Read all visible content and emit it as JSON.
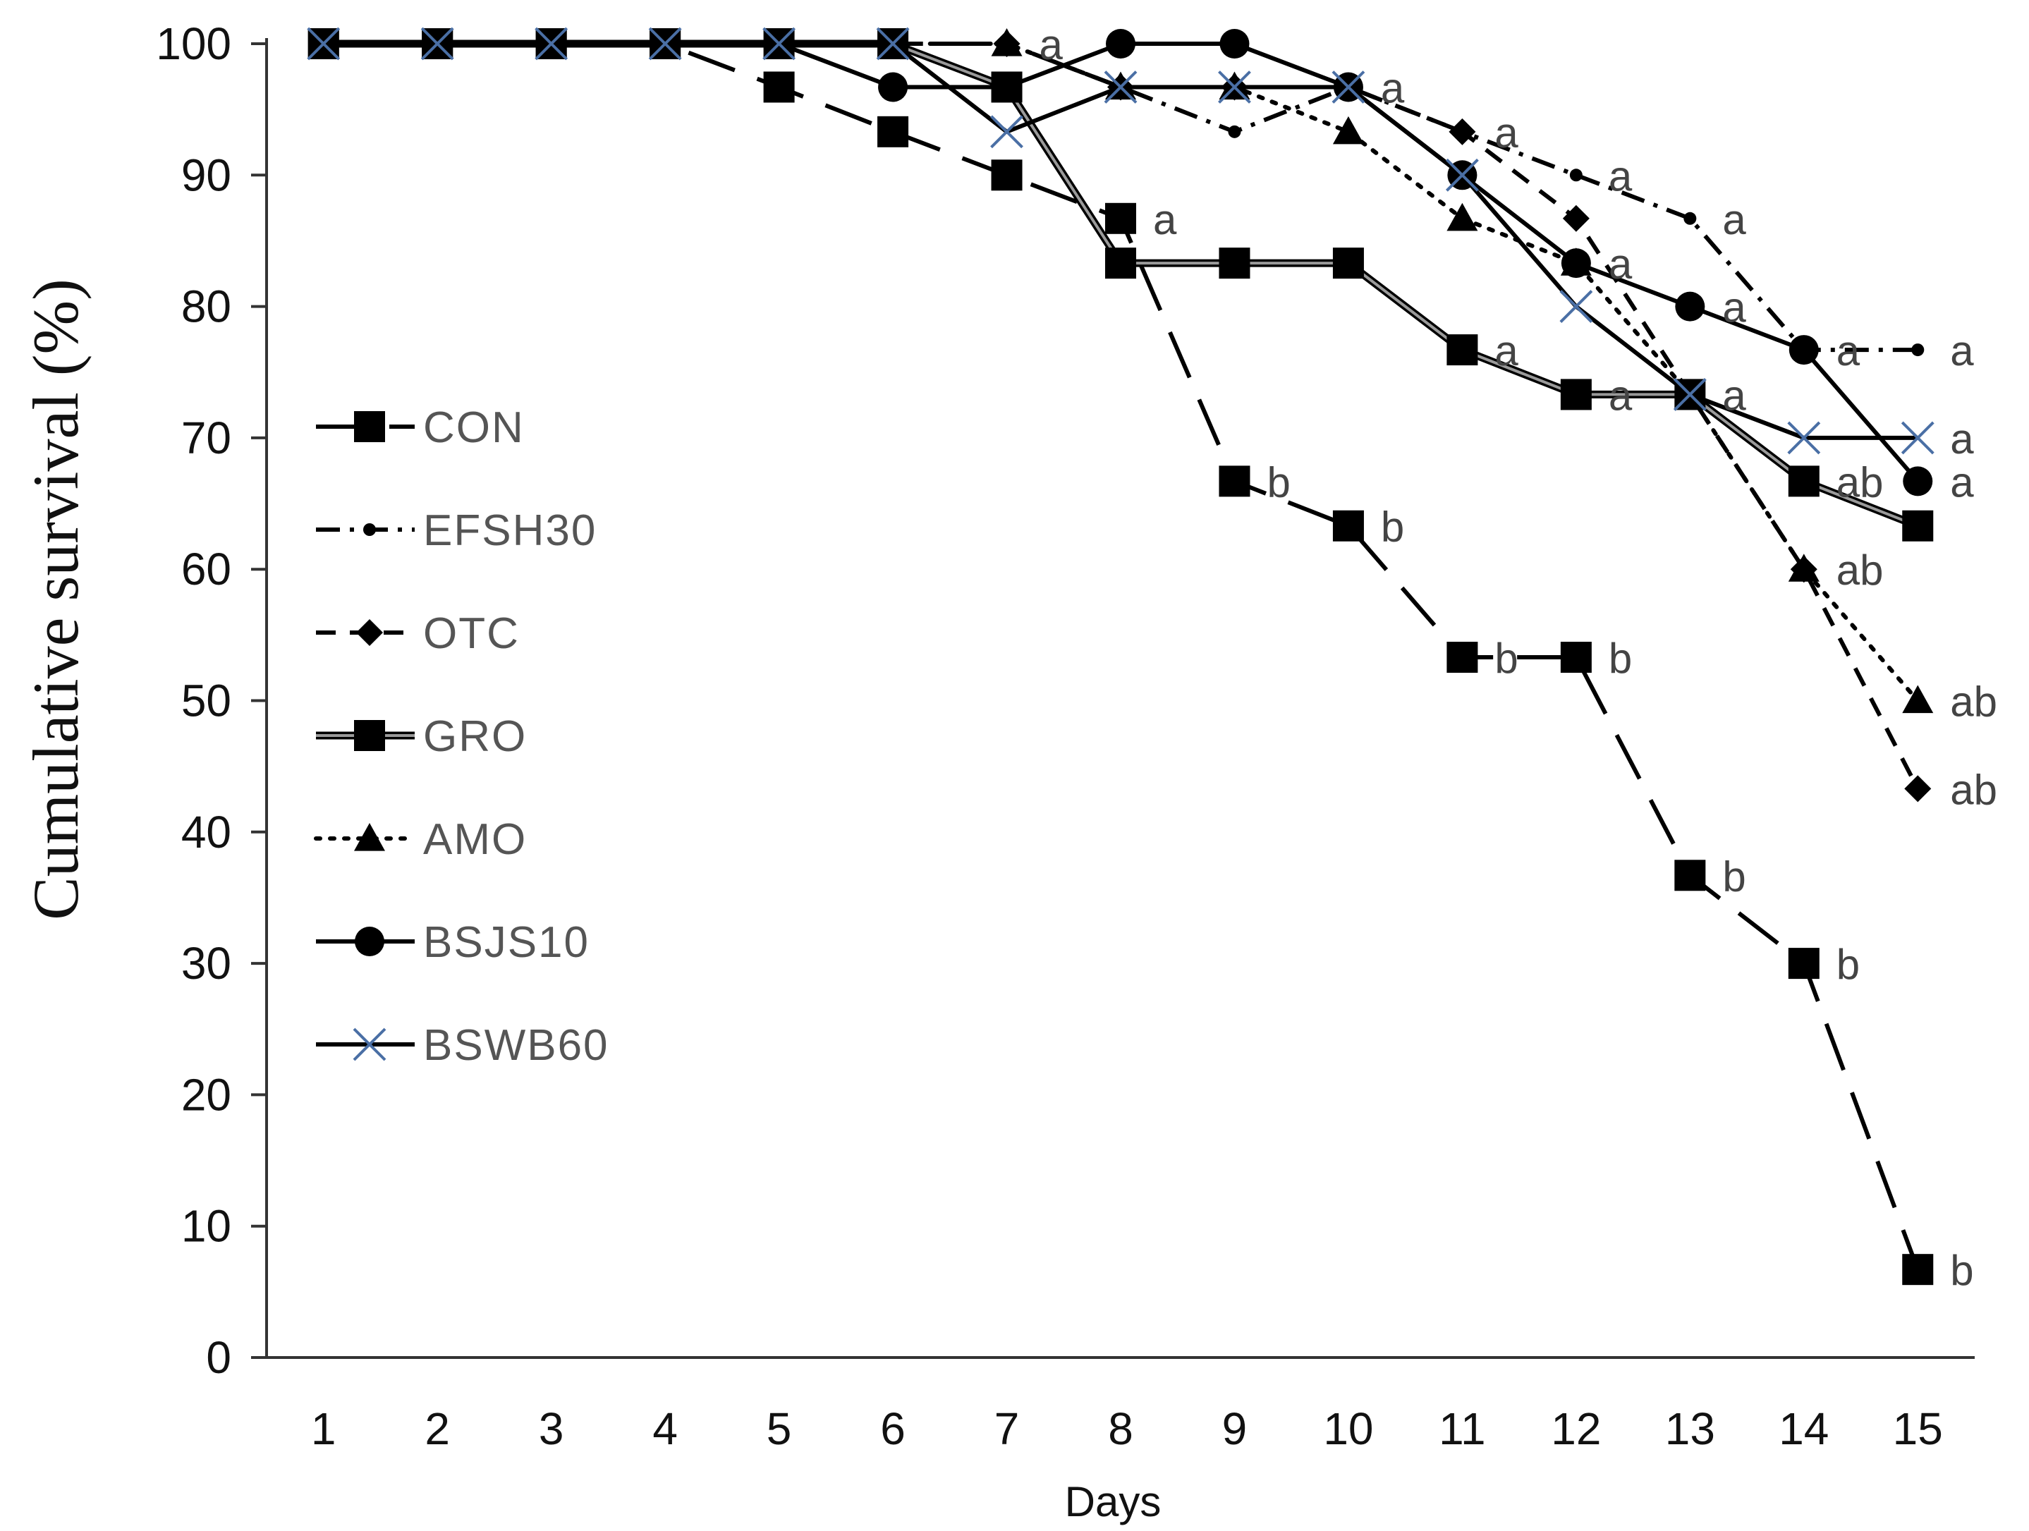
{
  "chart_data": {
    "type": "line",
    "title": "",
    "xlabel": "Days",
    "ylabel": "Cumulative survival (%)",
    "x": [
      1,
      2,
      3,
      4,
      5,
      6,
      7,
      8,
      9,
      10,
      11,
      12,
      13,
      14,
      15
    ],
    "x_tick_labels": [
      "1",
      "2",
      "3",
      "4",
      "5",
      "6",
      "7",
      "8",
      "9",
      "10",
      "11",
      "12",
      "13",
      "14",
      "15"
    ],
    "y_tick_labels": [
      "0",
      "10",
      "20",
      "30",
      "40",
      "50",
      "60",
      "70",
      "80",
      "90",
      "100"
    ],
    "xlim": [
      0.5,
      15.5
    ],
    "ylim": [
      0,
      100
    ],
    "grid": false,
    "legend_position": "left",
    "series": [
      {
        "name": "CON",
        "line_style": "long-dash",
        "marker": "square",
        "color": "#000000",
        "values": [
          100,
          100,
          100,
          100,
          96.7,
          93.3,
          90,
          86.7,
          66.7,
          63.3,
          53.3,
          53.3,
          36.7,
          30,
          6.7
        ],
        "annotations": [
          {
            "day": 8,
            "label": "a"
          },
          {
            "day": 9,
            "label": "b"
          },
          {
            "day": 10,
            "label": "b"
          },
          {
            "day": 11,
            "label": "b"
          },
          {
            "day": 12,
            "label": "b"
          },
          {
            "day": 13,
            "label": "b"
          },
          {
            "day": 14,
            "label": "b"
          },
          {
            "day": 15,
            "label": "b"
          }
        ]
      },
      {
        "name": "EFSH30",
        "line_style": "dash-dot",
        "marker": "dot",
        "color": "#000000",
        "values": [
          100,
          100,
          100,
          100,
          100,
          100,
          100,
          96.7,
          93.3,
          96.7,
          93.3,
          90,
          86.7,
          76.7,
          76.7
        ],
        "annotations": [
          {
            "day": 12,
            "label": "a"
          },
          {
            "day": 13,
            "label": "a"
          },
          {
            "day": 15,
            "label": "a"
          }
        ]
      },
      {
        "name": "OTC",
        "line_style": "dashed",
        "marker": "diamond",
        "color": "#000000",
        "values": [
          100,
          100,
          100,
          100,
          100,
          100,
          100,
          96.7,
          96.7,
          96.7,
          93.3,
          86.7,
          73.3,
          60,
          43.3
        ],
        "annotations": [
          {
            "day": 11,
            "label": "a"
          },
          {
            "day": 15,
            "label": "ab"
          }
        ]
      },
      {
        "name": "GRO",
        "line_style": "double",
        "marker": "square",
        "color": "#000000",
        "values": [
          100,
          100,
          100,
          100,
          100,
          100,
          96.7,
          83.3,
          83.3,
          83.3,
          76.7,
          73.3,
          73.3,
          66.7,
          63.3
        ],
        "annotations": [
          {
            "day": 11,
            "label": "a"
          },
          {
            "day": 12,
            "label": "a"
          },
          {
            "day": 13,
            "label": "a"
          },
          {
            "day": 14,
            "label": "ab"
          }
        ]
      },
      {
        "name": "AMO",
        "line_style": "dotted",
        "marker": "triangle",
        "color": "#000000",
        "values": [
          100,
          100,
          100,
          100,
          100,
          100,
          100,
          96.7,
          96.7,
          93.3,
          86.7,
          83.3,
          73.3,
          60,
          50
        ],
        "annotations": [
          {
            "day": 7,
            "label": "a"
          },
          {
            "day": 14,
            "label": "ab"
          },
          {
            "day": 15,
            "label": "ab"
          }
        ]
      },
      {
        "name": "BSJS10",
        "line_style": "solid",
        "marker": "circle",
        "color": "#000000",
        "values": [
          100,
          100,
          100,
          100,
          100,
          96.7,
          96.7,
          100,
          100,
          96.7,
          90,
          83.3,
          80,
          76.7,
          66.7
        ],
        "annotations": [
          {
            "day": 12,
            "label": "a"
          },
          {
            "day": 13,
            "label": "a"
          },
          {
            "day": 14,
            "label": "a"
          },
          {
            "day": 15,
            "label": "a"
          }
        ]
      },
      {
        "name": "BSWB60",
        "line_style": "solid",
        "marker": "x",
        "color": "#000000",
        "marker_color": "#4a6fa5",
        "values": [
          100,
          100,
          100,
          100,
          100,
          100,
          93.3,
          96.7,
          96.7,
          96.7,
          90,
          80,
          73.3,
          70,
          70
        ],
        "annotations": [
          {
            "day": 10,
            "label": "a"
          },
          {
            "day": 15,
            "label": "a"
          }
        ]
      }
    ]
  }
}
